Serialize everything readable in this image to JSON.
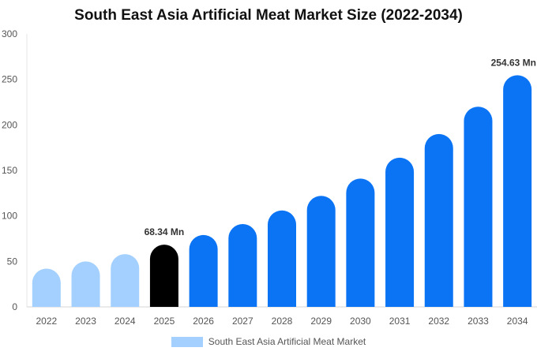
{
  "chart_data": {
    "type": "bar",
    "title": "South East Asia Artificial Meat Market Size (2022-2034)",
    "xlabel": "",
    "ylabel": "",
    "categories": [
      "2022",
      "2023",
      "2024",
      "2025",
      "2026",
      "2027",
      "2028",
      "2029",
      "2030",
      "2031",
      "2032",
      "2033",
      "2034"
    ],
    "series": [
      {
        "name": "South East Asia Artificial Meat Market",
        "values": [
          42,
          50,
          58,
          68.34,
          79,
          91,
          106,
          122,
          141,
          164,
          190,
          220,
          254.63
        ]
      }
    ],
    "ylim": [
      0,
      300
    ],
    "yticks": [
      0,
      50,
      100,
      150,
      200,
      250,
      300
    ],
    "highlight_index": 3,
    "data_labels": [
      {
        "index": 3,
        "text": "68.34 Mn"
      },
      {
        "index": 12,
        "text": "254.63 Mn"
      }
    ],
    "colors": {
      "historical": "#a3d0ff",
      "highlight": "#000000",
      "forecast": "#0b74f5",
      "legend": "#a3d0ff"
    },
    "grid": false,
    "legend_position": "bottom"
  }
}
